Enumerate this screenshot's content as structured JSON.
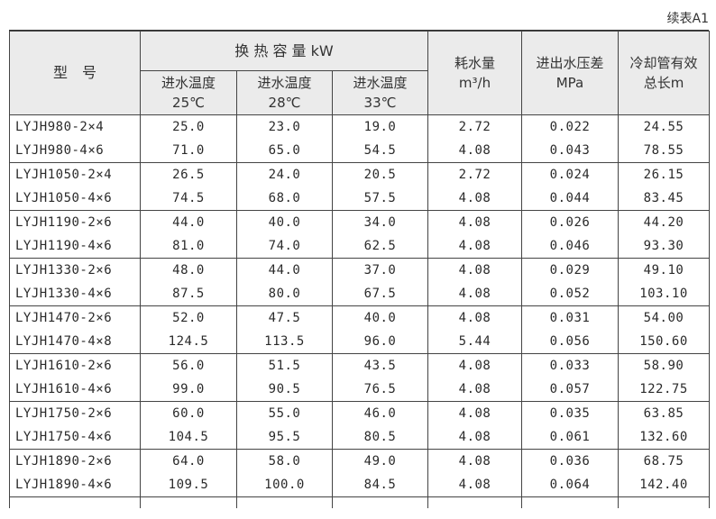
{
  "caption": "续表A1",
  "header": {
    "model": "型　号",
    "capacity": "换 热 容 量 kW",
    "temp_cols": [
      {
        "line1": "进水温度",
        "line2": "25℃"
      },
      {
        "line1": "进水温度",
        "line2": "28℃"
      },
      {
        "line1": "进水温度",
        "line2": "33℃"
      }
    ],
    "water_use": {
      "line1": "耗水量",
      "line2": "m³/h"
    },
    "pressure_diff": {
      "line1": "进出水压差",
      "line2": "MPa"
    },
    "tube_length": {
      "line1": "冷却管有效",
      "line2": "总长m"
    }
  },
  "rows": [
    [
      "LYJH980-2×4",
      "25.0",
      "23.0",
      "19.0",
      "2.72",
      "0.022",
      "24.55"
    ],
    [
      "LYJH980-4×6",
      "71.0",
      "65.0",
      "54.5",
      "4.08",
      "0.043",
      "78.55"
    ],
    [
      "LYJH1050-2×4",
      "26.5",
      "24.0",
      "20.5",
      "2.72",
      "0.024",
      "26.15"
    ],
    [
      "LYJH1050-4×6",
      "74.5",
      "68.0",
      "57.5",
      "4.08",
      "0.044",
      "83.45"
    ],
    [
      "LYJH1190-2×6",
      "44.0",
      "40.0",
      "34.0",
      "4.08",
      "0.026",
      "44.20"
    ],
    [
      "LYJH1190-4×6",
      "81.0",
      "74.0",
      "62.5",
      "4.08",
      "0.046",
      "93.30"
    ],
    [
      "LYJH1330-2×6",
      "48.0",
      "44.0",
      "37.0",
      "4.08",
      "0.029",
      "49.10"
    ],
    [
      "LYJH1330-4×6",
      "87.5",
      "80.0",
      "67.5",
      "4.08",
      "0.052",
      "103.10"
    ],
    [
      "LYJH1470-2×6",
      "52.0",
      "47.5",
      "40.0",
      "4.08",
      "0.031",
      "54.00"
    ],
    [
      "LYJH1470-4×8",
      "124.5",
      "113.5",
      "96.0",
      "5.44",
      "0.056",
      "150.60"
    ],
    [
      "LYJH1610-2×6",
      "56.0",
      "51.5",
      "43.5",
      "4.08",
      "0.033",
      "58.90"
    ],
    [
      "LYJH1610-4×6",
      "99.0",
      "90.5",
      "76.5",
      "4.08",
      "0.057",
      "122.75"
    ],
    [
      "LYJH1750-2×6",
      "60.0",
      "55.0",
      "46.0",
      "4.08",
      "0.035",
      "63.85"
    ],
    [
      "LYJH1750-4×6",
      "104.5",
      "95.5",
      "80.5",
      "4.08",
      "0.061",
      "132.60"
    ],
    [
      "LYJH1890-2×6",
      "64.0",
      "58.0",
      "49.0",
      "4.08",
      "0.036",
      "68.75"
    ],
    [
      "LYJH1890-4×6",
      "109.5",
      "100.0",
      "84.5",
      "4.08",
      "0.064",
      "142.40"
    ]
  ]
}
